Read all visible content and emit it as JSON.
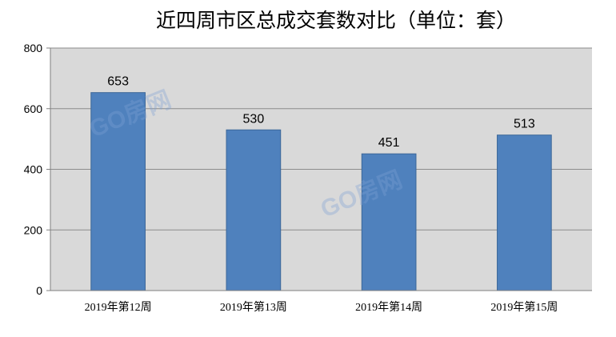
{
  "chart_data": {
    "type": "bar",
    "title": "近四周市区总成交套数对比（单位：套）",
    "categories": [
      "2019年第12周",
      "2019年第13周",
      "2019年第14周",
      "2019年第15周"
    ],
    "values": [
      653,
      530,
      451,
      513
    ],
    "ylim": [
      0,
      800
    ],
    "yticks": [
      0,
      200,
      400,
      600,
      800
    ],
    "grid": true,
    "legend": "none",
    "colors": {
      "bar": "#4F81BD",
      "bar_border": "#3C6798",
      "plot_bg": "#D9D9D9",
      "grid": "#8C8C8C",
      "watermark": "#7EA2D6"
    }
  },
  "watermark": {
    "text": "GO房网"
  }
}
